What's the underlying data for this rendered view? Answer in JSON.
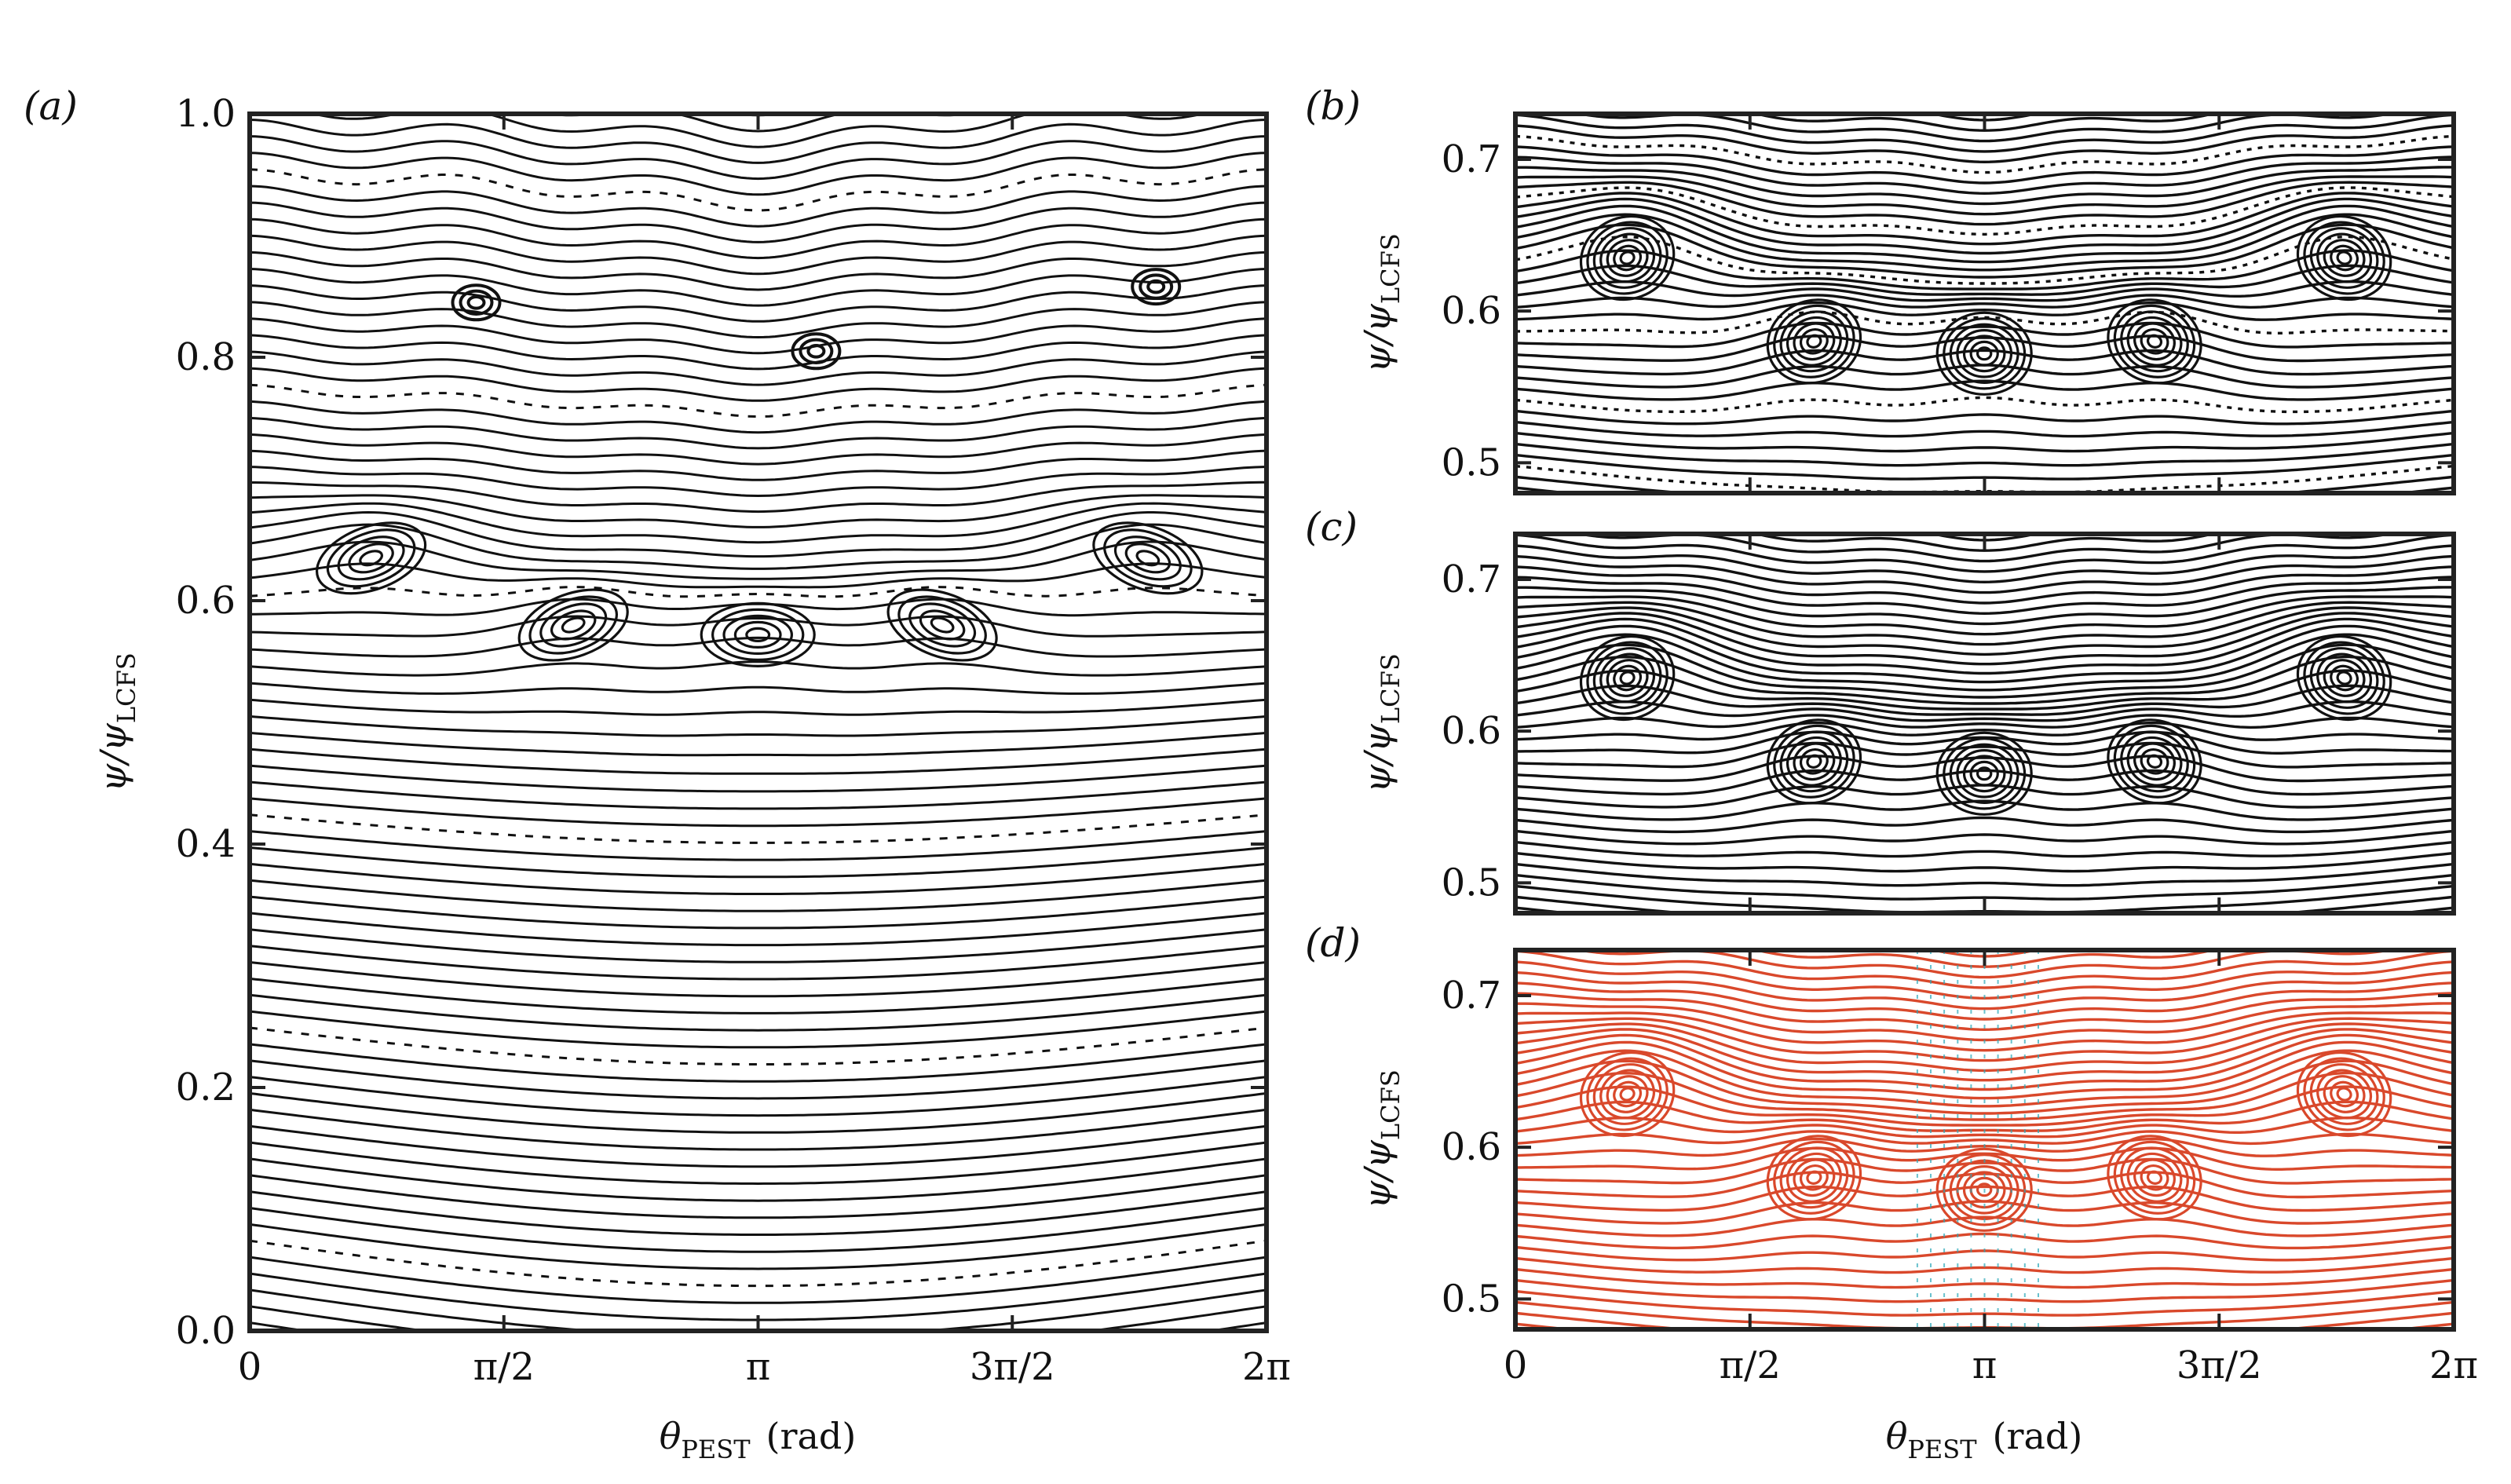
{
  "chart_data": [
    {
      "panel": "(a)",
      "type": "line",
      "description_kind": "Poincare section (field-line traces)",
      "xlabel": "θ",
      "xlabel_sub": "PEST",
      "xlabel_unit": "(rad)",
      "ylabel": "ψ/ψ",
      "ylabel_sub": "LCFS",
      "xlim": [
        0,
        6.2832
      ],
      "ylim": [
        0,
        1.0
      ],
      "xticks": [
        0,
        1.5708,
        3.1416,
        4.7124,
        6.2832
      ],
      "xtick_labels": [
        "0",
        "π/2",
        "π",
        "3π/2",
        "2π"
      ],
      "yticks": [
        0,
        0.2,
        0.4,
        0.6,
        0.8,
        1.0
      ],
      "ytick_labels": [
        "0.0",
        "0.2",
        "0.4",
        "0.6",
        "0.8",
        "1.0"
      ],
      "islands": [
        {
          "theta": 0.75,
          "psi": 0.635
        },
        {
          "theta": 2.0,
          "psi": 0.58
        },
        {
          "theta": 3.14,
          "psi": 0.572
        },
        {
          "theta": 4.28,
          "psi": 0.58
        },
        {
          "theta": 5.55,
          "psi": 0.635
        }
      ],
      "outer_islands": [
        {
          "theta": 1.4,
          "psi": 0.845
        },
        {
          "theta": 3.5,
          "psi": 0.805
        },
        {
          "theta": 5.6,
          "psi": 0.858
        }
      ],
      "color": "#111111"
    },
    {
      "panel": "(b)",
      "type": "line",
      "ylabel": "ψ/ψ",
      "ylabel_sub": "LCFS",
      "xlim": [
        0,
        6.2832
      ],
      "ylim": [
        0.48,
        0.73
      ],
      "yticks": [
        0.5,
        0.6,
        0.7
      ],
      "ytick_labels": [
        "0.5",
        "0.6",
        "0.7"
      ],
      "color": "#111111"
    },
    {
      "panel": "(c)",
      "type": "line",
      "ylabel": "ψ/ψ",
      "ylabel_sub": "LCFS",
      "xlim": [
        0,
        6.2832
      ],
      "ylim": [
        0.48,
        0.73
      ],
      "yticks": [
        0.5,
        0.6,
        0.7
      ],
      "ytick_labels": [
        "0.5",
        "0.6",
        "0.7"
      ],
      "color": "#111111"
    },
    {
      "panel": "(d)",
      "type": "line",
      "xlabel": "θ",
      "xlabel_sub": "PEST",
      "xlabel_unit": "(rad)",
      "ylabel": "ψ/ψ",
      "ylabel_sub": "LCFS",
      "xlim": [
        0,
        6.2832
      ],
      "ylim": [
        0.48,
        0.73
      ],
      "xticks": [
        0,
        1.5708,
        3.1416,
        4.7124,
        6.2832
      ],
      "xtick_labels": [
        "0",
        "π/2",
        "π",
        "3π/2",
        "2π"
      ],
      "yticks": [
        0.5,
        0.6,
        0.7
      ],
      "ytick_labels": [
        "0.5",
        "0.6",
        "0.7"
      ],
      "color": "#d9482b",
      "overlay_color": "#2aa8b8"
    }
  ]
}
